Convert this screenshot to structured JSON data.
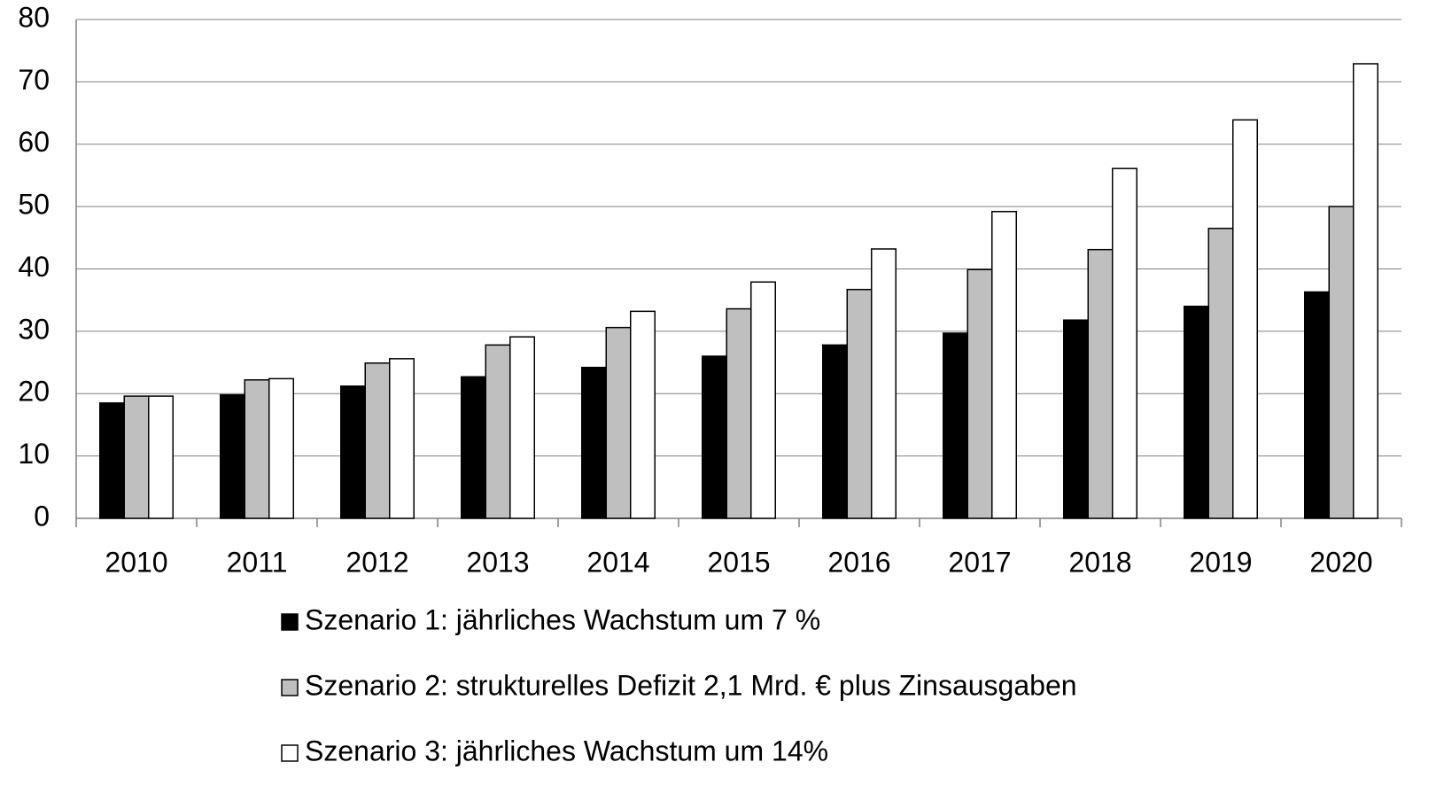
{
  "chart_data": {
    "type": "bar",
    "categories": [
      "2010",
      "2011",
      "2012",
      "2013",
      "2014",
      "2015",
      "2016",
      "2017",
      "2018",
      "2019",
      "2020"
    ],
    "series": [
      {
        "name": "Szenario 1: jährliches Wachstum um 7 %",
        "color": "#000000",
        "values": [
          18.5,
          19.8,
          21.2,
          22.7,
          24.2,
          26.0,
          27.8,
          29.7,
          31.8,
          34.0,
          36.3
        ]
      },
      {
        "name": "Szenario 2: strukturelles Defizit 2,1 Mrd. € plus Zinsausgaben",
        "color": "#bfbfbf",
        "values": [
          19.6,
          22.2,
          24.9,
          27.8,
          30.6,
          33.6,
          36.7,
          39.9,
          43.1,
          46.5,
          50.0
        ]
      },
      {
        "name": "Szenario 3: jährliches Wachstum um 14%",
        "color": "#ffffff",
        "values": [
          19.6,
          22.4,
          25.6,
          29.1,
          33.2,
          37.9,
          43.2,
          49.2,
          56.1,
          63.9,
          72.9
        ]
      }
    ],
    "ylim": [
      0,
      80
    ],
    "yticks": [
      0,
      10,
      20,
      30,
      40,
      50,
      60,
      70,
      80
    ],
    "grid": true
  }
}
